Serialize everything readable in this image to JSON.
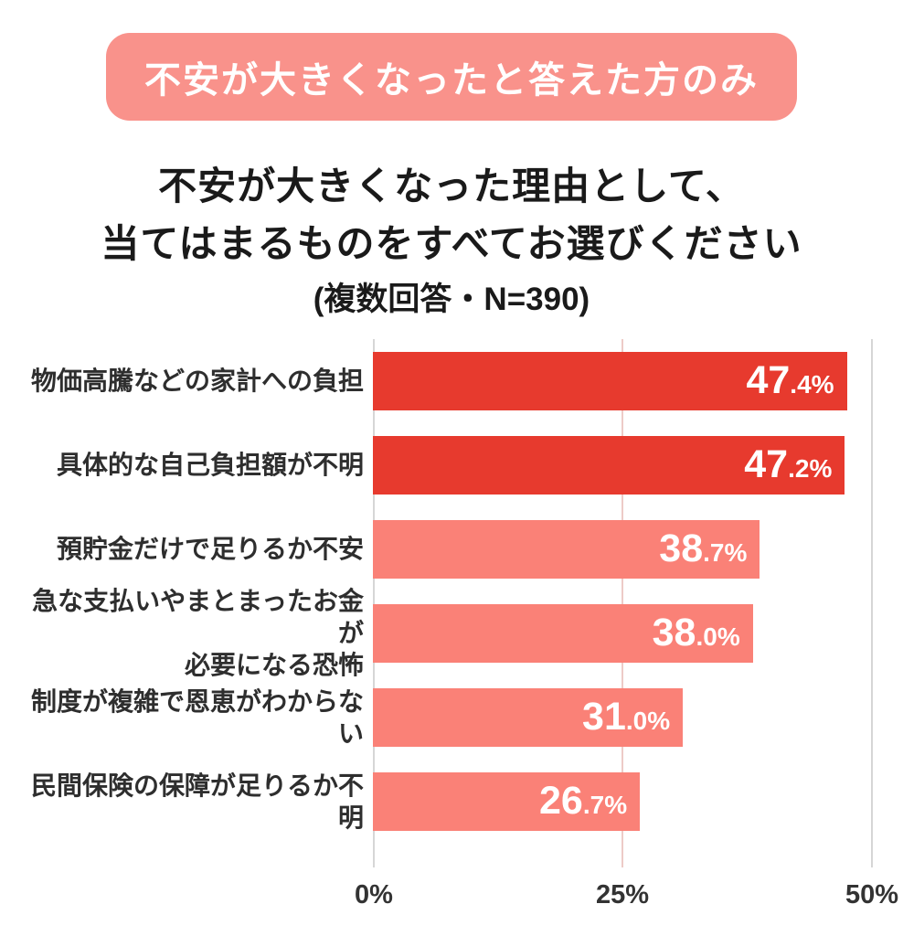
{
  "badge": {
    "label": "不安が大きくなったと答えた方のみ"
  },
  "title": {
    "line1": "不安が大きくなった理由として、",
    "line2": "当てはまるものをすべてお選びください",
    "line3": "(複数回答・N=390)"
  },
  "colors": {
    "badge_bg": "#F9928B",
    "bar_dark": "#E73A2E",
    "bar_light": "#FA8177",
    "grid": "#D6D6D6",
    "grid_mid": "#EDCBC7"
  },
  "chart_data": {
    "type": "bar",
    "orientation": "horizontal",
    "title": "不安が大きくなった理由として、当てはまるものをすべてお選びください(複数回答・N=390)",
    "sample_note": "複数回答・N=390",
    "categories": [
      "物価高騰などの家計への負担",
      "具体的な自己負担額が不明",
      "預貯金だけで足りるか不安",
      "急な支払いやまとまったお金が必要になる恐怖",
      "制度が複雑で恩恵がわからない",
      "民間保険の保障が足りるか不明"
    ],
    "values": [
      47.4,
      47.2,
      38.7,
      38.0,
      31.0,
      26.7
    ],
    "xlim": [
      0,
      50
    ],
    "x_ticks": [
      "0%",
      "25%",
      "50%"
    ],
    "grid": "vertical",
    "legend": "none",
    "rows": [
      {
        "label_line1": "物価高騰などの家計への負担",
        "label_line2": "",
        "value": 47.4,
        "value_main": "47",
        "value_frac": ".4%",
        "color": "#E73A2E"
      },
      {
        "label_line1": "具体的な自己負担額が不明",
        "label_line2": "",
        "value": 47.2,
        "value_main": "47",
        "value_frac": ".2%",
        "color": "#E73A2E"
      },
      {
        "label_line1": "預貯金だけで足りるか不安",
        "label_line2": "",
        "value": 38.7,
        "value_main": "38",
        "value_frac": ".7%",
        "color": "#FA8177"
      },
      {
        "label_line1": "急な支払いやまとまったお金が",
        "label_line2": "必要になる恐怖",
        "value": 38.0,
        "value_main": "38",
        "value_frac": ".0%",
        "color": "#FA8177"
      },
      {
        "label_line1": "制度が複雑で恩恵がわからない",
        "label_line2": "",
        "value": 31.0,
        "value_main": "31",
        "value_frac": ".0%",
        "color": "#FA8177"
      },
      {
        "label_line1": "民間保険の保障が足りるか不明",
        "label_line2": "",
        "value": 26.7,
        "value_main": "26",
        "value_frac": ".7%",
        "color": "#FA8177"
      }
    ]
  }
}
